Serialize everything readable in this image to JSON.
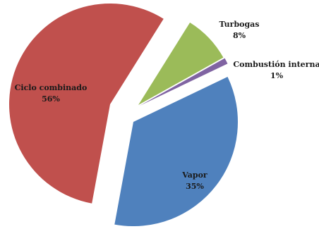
{
  "chart_data": {
    "type": "pie",
    "title": "",
    "legend": "none",
    "slices": [
      {
        "label": "Ciclo combinado",
        "value": 56,
        "value_label": "56%",
        "color": "#c0504d"
      },
      {
        "label": "Turbogas",
        "value": 8,
        "value_label": "8%",
        "color": "#9bbb59"
      },
      {
        "label": "Combustión interna",
        "value": 1,
        "value_label": "1%",
        "color": "#8064a2"
      },
      {
        "label": "Vapor",
        "value": 35,
        "value_label": "35%",
        "color": "#4f81bd"
      }
    ]
  }
}
